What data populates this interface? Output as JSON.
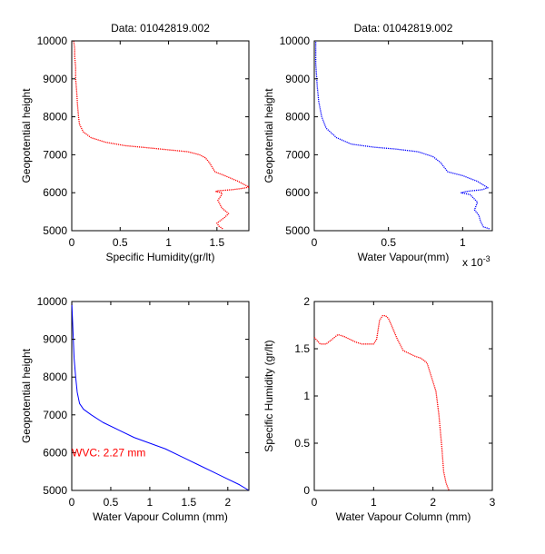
{
  "chart_data": [
    {
      "type": "line",
      "title": "Data: 01042819.002",
      "xlabel": "Specific Humidity(gr/lt)",
      "ylabel": "Geopotential height",
      "xlim": [
        0,
        1.83
      ],
      "ylim": [
        5000,
        10000
      ],
      "xticks": [
        0,
        0.5,
        1,
        1.5
      ],
      "xtick_labels": [
        "0",
        "0.5",
        "1",
        "1.5"
      ],
      "yticks": [
        5000,
        6000,
        7000,
        8000,
        9000,
        10000
      ],
      "ytick_labels": [
        "5000",
        "6000",
        "7000",
        "8000",
        "9000",
        "10000"
      ],
      "grid": false,
      "series": [
        {
          "color": "#ff0000",
          "style": "dotted",
          "x": [
            1.56,
            1.52,
            1.5,
            1.58,
            1.62,
            1.55,
            1.51,
            1.55,
            1.55,
            1.49,
            1.5,
            1.66,
            1.78,
            1.83,
            1.72,
            1.58,
            1.48,
            1.42,
            1.38,
            1.32,
            1.2,
            1.0,
            0.8,
            0.55,
            0.35,
            0.2,
            0.12,
            0.08,
            0.07,
            0.06,
            0.05,
            0.04,
            0.04,
            0.03,
            0.03,
            0.02
          ],
          "y": [
            5050,
            5120,
            5200,
            5350,
            5450,
            5600,
            5800,
            5950,
            6000,
            6030,
            6050,
            6080,
            6120,
            6150,
            6300,
            6450,
            6550,
            6800,
            6920,
            7000,
            7080,
            7130,
            7180,
            7240,
            7330,
            7450,
            7600,
            7800,
            8000,
            8300,
            8700,
            9000,
            9300,
            9600,
            9800,
            10000
          ]
        }
      ]
    },
    {
      "type": "line",
      "title": "Data: 01042819.002",
      "xlabel": "Water Vapour(mm)",
      "ylabel": "Geopotential height",
      "x_multiplier_label": "x 10",
      "x_multiplier_exp": "-3",
      "xlim": [
        0,
        1.2
      ],
      "ylim": [
        5000,
        10000
      ],
      "xticks": [
        0,
        0.5,
        1
      ],
      "xtick_labels": [
        "0",
        "0.5",
        "1"
      ],
      "yticks": [
        5000,
        6000,
        7000,
        8000,
        9000,
        10000
      ],
      "ytick_labels": [
        "5000",
        "6000",
        "7000",
        "8000",
        "9000",
        "10000"
      ],
      "grid": false,
      "series": [
        {
          "color": "#0000ff",
          "style": "dotted",
          "x": [
            1.18,
            1.14,
            1.12,
            1.11,
            1.08,
            1.1,
            1.05,
            0.99,
            1.02,
            1.06,
            1.13,
            1.17,
            1.1,
            1.0,
            0.9,
            0.85,
            0.8,
            0.7,
            0.55,
            0.4,
            0.25,
            0.15,
            0.08,
            0.05,
            0.03,
            0.02,
            0.01,
            0.01
          ],
          "y": [
            5050,
            5100,
            5250,
            5400,
            5550,
            5750,
            5950,
            6000,
            6030,
            6050,
            6080,
            6130,
            6300,
            6450,
            6550,
            6800,
            6950,
            7080,
            7150,
            7200,
            7280,
            7450,
            7700,
            8000,
            8400,
            8800,
            9400,
            10000
          ]
        }
      ]
    },
    {
      "type": "line",
      "title": "",
      "xlabel": "Water Vapour Column (mm)",
      "ylabel": "Geopotential height",
      "xlim": [
        0,
        2.27
      ],
      "ylim": [
        5000,
        10000
      ],
      "xticks": [
        0,
        0.5,
        1,
        1.5,
        2
      ],
      "xtick_labels": [
        "0",
        "0.5",
        "1",
        "1.5",
        "2"
      ],
      "yticks": [
        5000,
        6000,
        7000,
        8000,
        9000,
        10000
      ],
      "ytick_labels": [
        "5000",
        "6000",
        "7000",
        "8000",
        "9000",
        "10000"
      ],
      "grid": false,
      "annotation": {
        "text": "WVC: 2.27 mm",
        "color": "#ff0000",
        "x": 0.0,
        "y": 6000
      },
      "series": [
        {
          "color": "#0000ff",
          "style": "solid",
          "x": [
            0.0,
            0.01,
            0.02,
            0.03,
            0.05,
            0.07,
            0.1,
            0.15,
            0.25,
            0.4,
            0.6,
            0.8,
            1.0,
            1.2,
            1.4,
            1.6,
            1.8,
            2.0,
            2.15,
            2.27
          ],
          "y": [
            10000,
            9500,
            9000,
            8500,
            8000,
            7600,
            7300,
            7150,
            7000,
            6800,
            6600,
            6400,
            6250,
            6100,
            5900,
            5700,
            5500,
            5300,
            5150,
            5000
          ]
        }
      ]
    },
    {
      "type": "line",
      "title": "",
      "xlabel": "Water Vapour Column (mm)",
      "ylabel": "Specific Humidity (gr/lt)",
      "xlim": [
        0,
        3
      ],
      "ylim": [
        0,
        2
      ],
      "xticks": [
        0,
        1,
        2,
        3
      ],
      "xtick_labels": [
        "0",
        "1",
        "2",
        "3"
      ],
      "yticks": [
        0,
        0.5,
        1,
        1.5,
        2
      ],
      "ytick_labels": [
        "0",
        "0.5",
        "1",
        "1.5",
        "2"
      ],
      "grid": false,
      "series": [
        {
          "color": "#ff0000",
          "style": "dotted",
          "x": [
            0.0,
            0.1,
            0.2,
            0.3,
            0.4,
            0.5,
            0.6,
            0.7,
            0.8,
            0.9,
            1.0,
            1.05,
            1.1,
            1.15,
            1.2,
            1.25,
            1.3,
            1.4,
            1.5,
            1.6,
            1.7,
            1.8,
            1.9,
            1.95,
            2.0,
            2.05,
            2.1,
            2.15,
            2.18,
            2.22,
            2.25,
            2.27
          ],
          "y": [
            1.62,
            1.55,
            1.55,
            1.6,
            1.65,
            1.63,
            1.6,
            1.57,
            1.55,
            1.55,
            1.55,
            1.6,
            1.8,
            1.85,
            1.85,
            1.82,
            1.75,
            1.6,
            1.48,
            1.45,
            1.42,
            1.4,
            1.35,
            1.25,
            1.15,
            1.05,
            0.8,
            0.45,
            0.2,
            0.08,
            0.03,
            0.0
          ]
        }
      ]
    }
  ]
}
